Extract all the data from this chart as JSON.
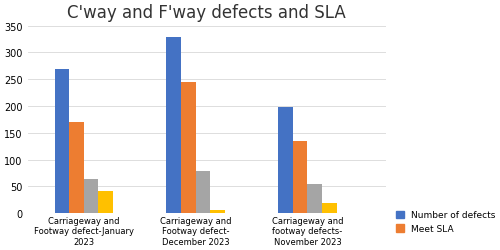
{
  "title": "C'way and F'way defects and SLA",
  "categories": [
    "Carriageway and\nFootway defect-January\n2023",
    "Carriageway and\nFootway defect-\nDecember 2023",
    "Carriageway and\nfootway defects-\nNovember 2023"
  ],
  "series": {
    "Number of defects": [
      268,
      328,
      199
    ],
    "Meet SLA": [
      170,
      245,
      135
    ],
    "col3": [
      63,
      78,
      54
    ],
    "col4": [
      42,
      7,
      19
    ]
  },
  "colors": {
    "Number of defects": "#4472C4",
    "Meet SLA": "#ED7D31",
    "col3": "#A5A5A5",
    "col4": "#FFC000"
  },
  "legend_labels": [
    "Number of defects",
    "Meet SLA"
  ],
  "ylim": [
    0,
    350
  ],
  "yticks": [
    0,
    50,
    100,
    150,
    200,
    250,
    300,
    350
  ],
  "background_color": "#ffffff",
  "title_fontsize": 12
}
